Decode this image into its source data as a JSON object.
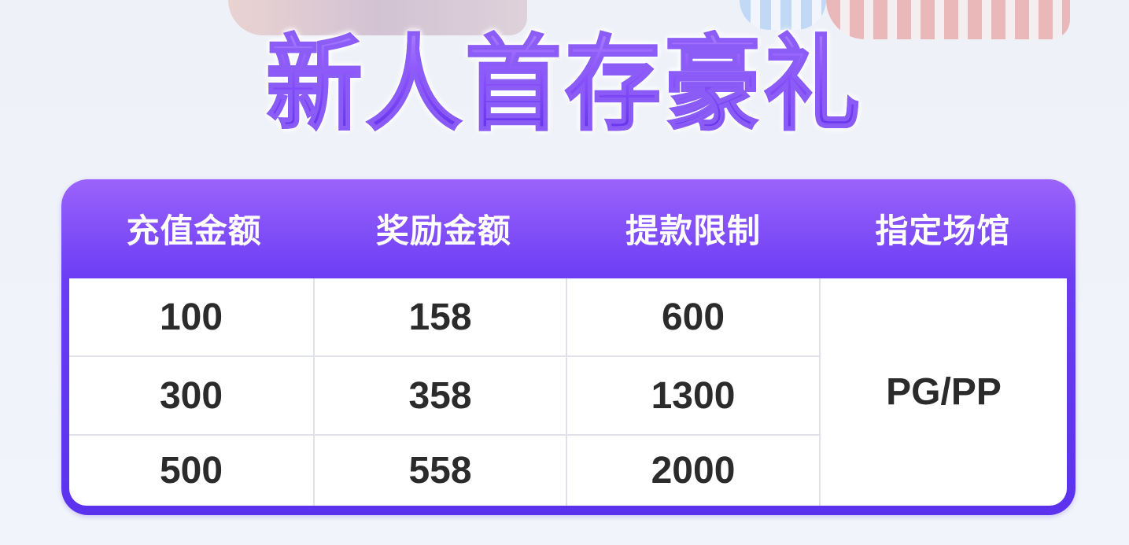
{
  "title": "新人首存豪礼",
  "table": {
    "headers": [
      "充值金额",
      "奖励金额",
      "提款限制",
      "指定场馆"
    ],
    "rows": [
      [
        "100",
        "158",
        "600"
      ],
      [
        "300",
        "358",
        "1300"
      ],
      [
        "500",
        "558",
        "2000"
      ]
    ],
    "venue": "PG/PP"
  },
  "colors": {
    "accent": "#6a3cf4",
    "header_top": "#9b63fb",
    "text": "#2b2b2b"
  }
}
